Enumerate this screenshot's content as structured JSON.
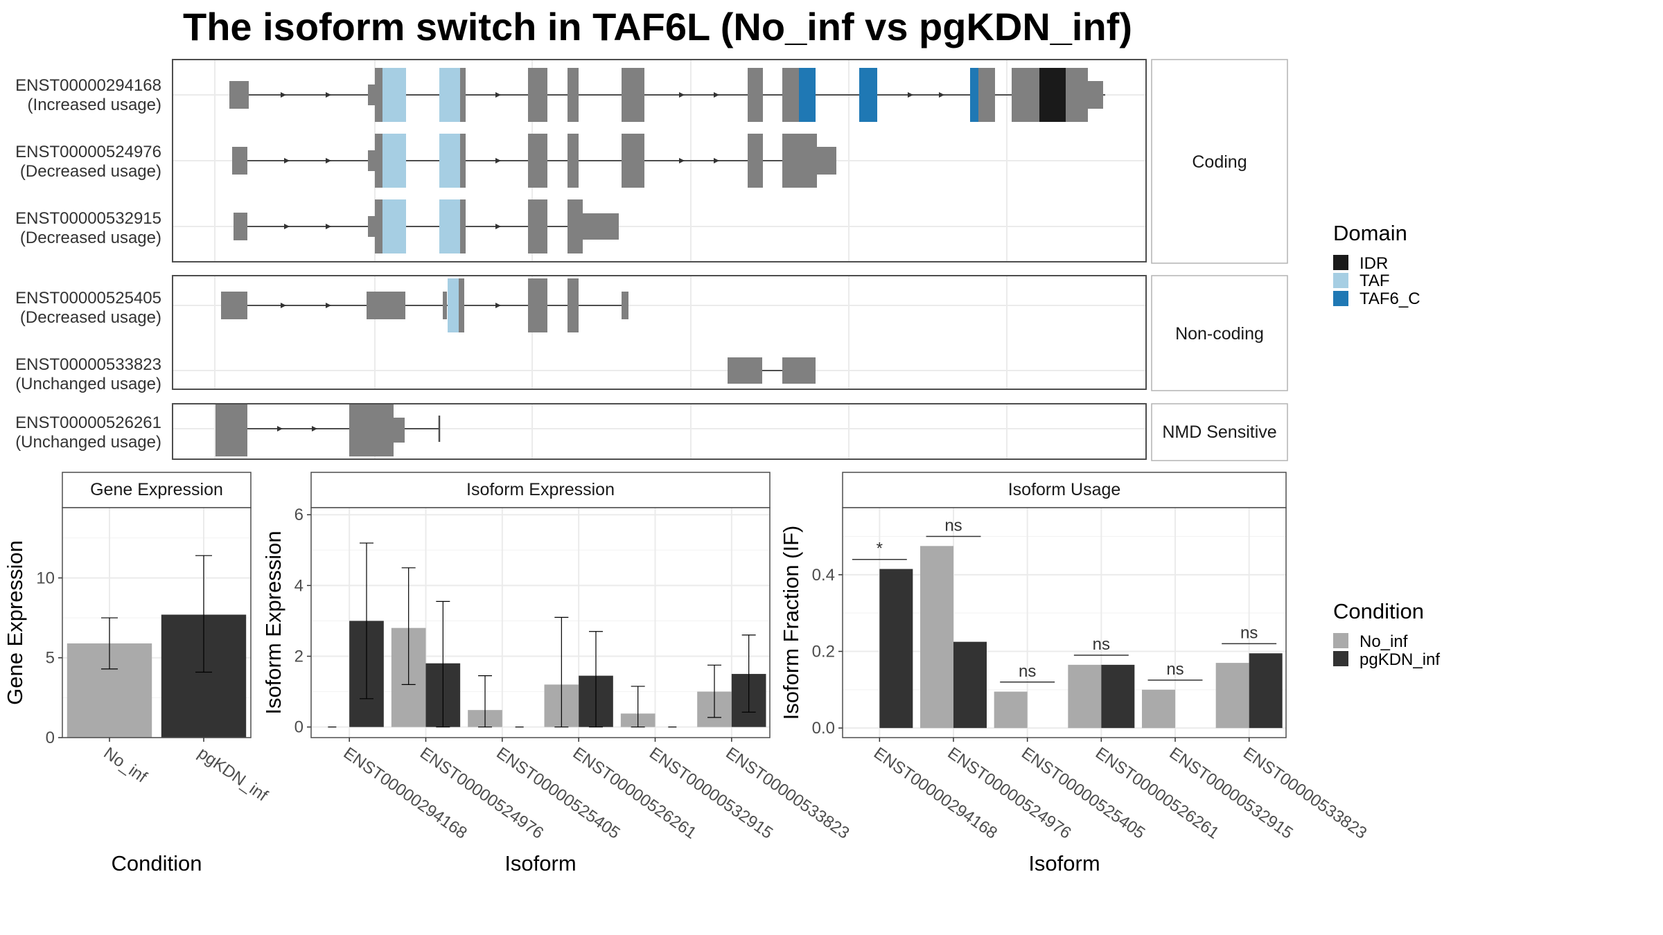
{
  "title": "The isoform switch in TAF6L (No_inf vs pgKDN_inf)",
  "colors": {
    "exon": "#808080",
    "IDR": "#1a1a1a",
    "TAF": "#a6cee3",
    "TAF6_C": "#1f78b4",
    "No_inf": "#aaaaaa",
    "pgKDN_inf": "#333333"
  },
  "structure": {
    "groups": [
      {
        "label": "Coding",
        "transcripts": [
          {
            "id": "ENST00000294168",
            "usage": "(Increased usage)"
          },
          {
            "id": "ENST00000524976",
            "usage": "(Decreased usage)"
          },
          {
            "id": "ENST00000532915",
            "usage": "(Decreased usage)"
          }
        ]
      },
      {
        "label": "Non-coding",
        "transcripts": [
          {
            "id": "ENST00000525405",
            "usage": "(Decreased usage)"
          },
          {
            "id": "ENST00000533823",
            "usage": "(Unchanged usage)"
          }
        ]
      },
      {
        "label": "NMD Sensitive",
        "transcripts": [
          {
            "id": "ENST00000526261",
            "usage": "(Unchanged usage)"
          }
        ]
      }
    ]
  },
  "legend_domain": {
    "title": "Domain",
    "items": [
      {
        "label": "IDR",
        "color": "#1a1a1a"
      },
      {
        "label": "TAF",
        "color": "#a6cee3"
      },
      {
        "label": "TAF6_C",
        "color": "#1f78b4"
      }
    ]
  },
  "legend_condition": {
    "title": "Condition",
    "items": [
      {
        "label": "No_inf",
        "color": "#aaaaaa"
      },
      {
        "label": "pgKDN_inf",
        "color": "#333333"
      }
    ]
  },
  "chart_data": [
    {
      "type": "bar",
      "strip": "Gene Expression",
      "xlabel": "Condition",
      "ylabel": "Gene Expression",
      "categories": [
        "No_inf",
        "pgKDN_inf"
      ],
      "values": [
        5.9,
        7.7
      ],
      "error_low": [
        4.3,
        4.1
      ],
      "error_high": [
        7.5,
        11.4
      ],
      "ylim": [
        0,
        14.4
      ],
      "yticks": [
        0,
        5,
        10
      ]
    },
    {
      "type": "bar",
      "strip": "Isoform Expression",
      "xlabel": "Isoform",
      "ylabel": "Isoform Expression",
      "categories": [
        "ENST00000294168",
        "ENST00000524976",
        "ENST00000525405",
        "ENST00000526261",
        "ENST00000532915",
        "ENST00000533823"
      ],
      "series": [
        {
          "name": "No_inf",
          "values": [
            0.0,
            2.8,
            0.48,
            1.2,
            0.38,
            1.0
          ],
          "error_low": [
            0.0,
            1.2,
            0.0,
            0.0,
            0.0,
            0.27
          ],
          "error_high": [
            0.0,
            4.5,
            1.45,
            3.1,
            1.15,
            1.75
          ]
        },
        {
          "name": "pgKDN_inf",
          "values": [
            3.0,
            1.8,
            0.0,
            1.45,
            0.0,
            1.5
          ],
          "error_low": [
            0.8,
            0.0,
            0.0,
            0.0,
            0.0,
            0.42
          ],
          "error_high": [
            5.2,
            3.55,
            0.0,
            2.7,
            0.0,
            2.6
          ]
        }
      ],
      "ylim": [
        -0.3,
        6.2
      ],
      "yticks": [
        0,
        2,
        4,
        6
      ]
    },
    {
      "type": "bar",
      "strip": "Isoform Usage",
      "xlabel": "Isoform",
      "ylabel": "Isoform Fraction (IF)",
      "categories": [
        "ENST00000294168",
        "ENST00000524976",
        "ENST00000525405",
        "ENST00000526261",
        "ENST00000532915",
        "ENST00000533823"
      ],
      "series": [
        {
          "name": "No_inf",
          "values": [
            0.0,
            0.475,
            0.095,
            0.165,
            0.1,
            0.17
          ]
        },
        {
          "name": "pgKDN_inf",
          "values": [
            0.415,
            0.225,
            0.0,
            0.165,
            0.0,
            0.195
          ]
        }
      ],
      "significance": [
        "*",
        "ns",
        "ns",
        "ns",
        "ns",
        "ns"
      ],
      "ylim": [
        -0.025,
        0.575
      ],
      "yticks": [
        0.0,
        0.2,
        0.4
      ]
    }
  ]
}
